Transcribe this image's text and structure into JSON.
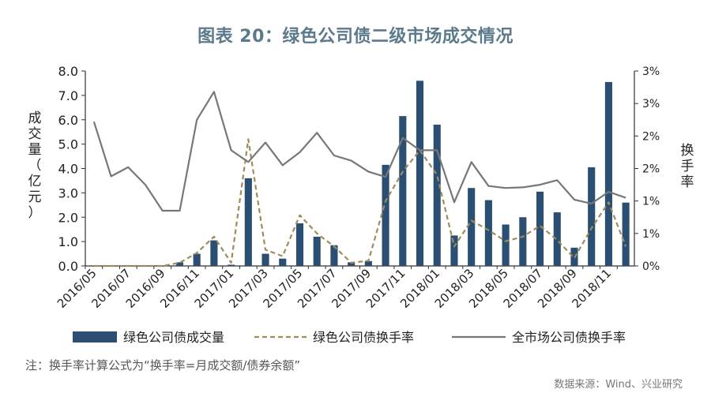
{
  "title": "图表 20：绿色公司债二级市场成交情况",
  "note": "注：换手率计算公式为“换手率=月成交额/债券余额”",
  "source": "数据来源：Wind、兴业研究",
  "chart_data": {
    "type": "bar+line",
    "y_left": {
      "label": "成交量（亿元）",
      "ylim": [
        0,
        8
      ],
      "ticks": [
        "0.0",
        "1.0",
        "2.0",
        "3.0",
        "4.0",
        "5.0",
        "6.0",
        "7.0",
        "8.0"
      ]
    },
    "y_right": {
      "label": "换手率",
      "ylim": [
        0,
        3
      ],
      "ticks": [
        "0%",
        "1%",
        "1%",
        "2%",
        "2%",
        "3%",
        "3%"
      ]
    },
    "categories": [
      "2016/05",
      "2016/06",
      "2016/07",
      "2016/08",
      "2016/09",
      "2016/10",
      "2016/11",
      "2016/12",
      "2017/01",
      "2017/02",
      "2017/03",
      "2017/04",
      "2017/05",
      "2017/06",
      "2017/07",
      "2017/08",
      "2017/09",
      "2017/10",
      "2017/11",
      "2017/12",
      "2018/01",
      "2018/02",
      "2018/03",
      "2018/04",
      "2018/05",
      "2018/06",
      "2018/07",
      "2018/08",
      "2018/09",
      "2018/10",
      "2018/11",
      "2018/12"
    ],
    "x_tick_labels": [
      "2016/05",
      "2016/07",
      "2016/09",
      "2016/11",
      "2017/01",
      "2017/03",
      "2017/05",
      "2017/07",
      "2017/09",
      "2017/11",
      "2018/01",
      "2018/03",
      "2018/05",
      "2018/07",
      "2018/09",
      "2018/11"
    ],
    "series": [
      {
        "name": "绿色公司债成交量",
        "type": "bar",
        "axis": "left",
        "color": "#2b4f72",
        "values": [
          0,
          0,
          0,
          0,
          0,
          0.15,
          0.5,
          1.05,
          0.05,
          3.6,
          0.5,
          0.3,
          1.75,
          1.2,
          0.85,
          0.15,
          0.2,
          4.15,
          6.15,
          7.6,
          5.8,
          1.25,
          3.2,
          2.7,
          1.7,
          2.0,
          3.05,
          2.2,
          0.75,
          4.05,
          7.55,
          2.6
        ]
      },
      {
        "name": "绿色公司债换手率",
        "type": "line",
        "axis": "right",
        "style": "dashed",
        "color": "#a08c5a",
        "values": [
          0,
          0,
          0,
          0,
          0,
          0.05,
          0.2,
          0.45,
          0.05,
          1.95,
          0.25,
          0.15,
          0.78,
          0.5,
          0.3,
          0.05,
          0.08,
          1.0,
          1.45,
          1.78,
          1.4,
          0.3,
          0.7,
          0.55,
          0.38,
          0.45,
          0.62,
          0.4,
          0.12,
          0.58,
          0.98,
          0.3
        ]
      },
      {
        "name": "全市场公司债换手率",
        "type": "line",
        "axis": "right",
        "color": "#777777",
        "values": [
          2.22,
          1.38,
          1.52,
          1.25,
          0.85,
          0.85,
          2.25,
          2.68,
          1.78,
          1.6,
          1.9,
          1.55,
          1.75,
          2.05,
          1.7,
          1.62,
          1.45,
          1.37,
          1.97,
          1.78,
          1.78,
          0.98,
          1.6,
          1.23,
          1.2,
          1.21,
          1.25,
          1.32,
          1.02,
          0.96,
          1.14,
          1.05
        ]
      }
    ],
    "legend_position": "bottom",
    "grid": false
  }
}
